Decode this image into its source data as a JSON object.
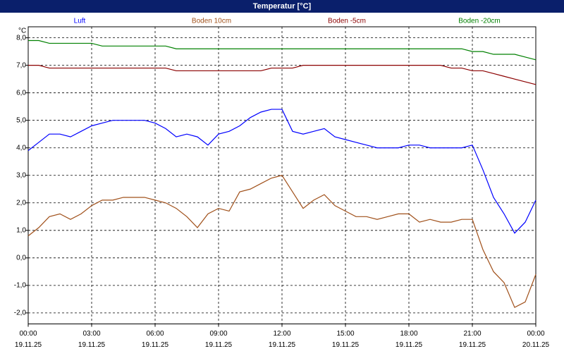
{
  "chart_data": {
    "type": "line",
    "title": "Temperatur [°C]",
    "y_unit": "°C",
    "x": [
      0,
      0.5,
      1,
      1.5,
      2,
      2.5,
      3,
      3.5,
      4,
      4.5,
      5,
      5.5,
      6,
      6.5,
      7,
      7.5,
      8,
      8.5,
      9,
      9.5,
      10,
      10.5,
      11,
      11.5,
      12,
      12.5,
      13,
      13.5,
      14,
      14.5,
      15,
      15.5,
      16,
      16.5,
      17,
      17.5,
      18,
      18.5,
      19,
      19.5,
      20,
      20.5,
      21,
      21.5,
      22,
      22.5,
      23,
      23.5,
      24
    ],
    "series": [
      {
        "name": "Luft",
        "color": "#0000ff",
        "values": [
          3.9,
          4.2,
          4.5,
          4.5,
          4.4,
          4.6,
          4.8,
          4.9,
          5.0,
          5.0,
          5.0,
          5.0,
          4.9,
          4.7,
          4.4,
          4.5,
          4.4,
          4.1,
          4.5,
          4.6,
          4.8,
          5.1,
          5.3,
          5.4,
          5.4,
          4.6,
          4.5,
          4.6,
          4.7,
          4.4,
          4.3,
          4.2,
          4.1,
          4.0,
          4.0,
          4.0,
          4.1,
          4.1,
          4.0,
          4.0,
          4.0,
          4.0,
          4.1,
          3.2,
          2.2,
          1.6,
          0.9,
          1.3,
          2.1
        ]
      },
      {
        "name": "Boden 10cm",
        "color": "#a0501a",
        "values": [
          0.8,
          1.1,
          1.5,
          1.6,
          1.4,
          1.6,
          1.9,
          2.1,
          2.1,
          2.2,
          2.2,
          2.2,
          2.1,
          2.0,
          1.8,
          1.5,
          1.1,
          1.6,
          1.8,
          1.7,
          2.4,
          2.5,
          2.7,
          2.9,
          3.0,
          2.4,
          1.8,
          2.1,
          2.3,
          1.9,
          1.7,
          1.5,
          1.5,
          1.4,
          1.5,
          1.6,
          1.6,
          1.3,
          1.4,
          1.3,
          1.3,
          1.4,
          1.4,
          0.3,
          -0.5,
          -0.9,
          -1.8,
          -1.6,
          -0.6
        ]
      },
      {
        "name": "Boden -5cm",
        "color": "#8b0000",
        "values": [
          7.0,
          7.0,
          6.9,
          6.9,
          6.9,
          6.9,
          6.9,
          6.9,
          6.9,
          6.9,
          6.9,
          6.9,
          6.9,
          6.9,
          6.8,
          6.8,
          6.8,
          6.8,
          6.8,
          6.8,
          6.8,
          6.8,
          6.8,
          6.9,
          6.9,
          6.9,
          7.0,
          7.0,
          7.0,
          7.0,
          7.0,
          7.0,
          7.0,
          7.0,
          7.0,
          7.0,
          7.0,
          7.0,
          7.0,
          7.0,
          6.9,
          6.9,
          6.8,
          6.8,
          6.7,
          6.6,
          6.5,
          6.4,
          6.3
        ]
      },
      {
        "name": "Boden -20cm",
        "color": "#008000",
        "values": [
          7.9,
          7.9,
          7.8,
          7.8,
          7.8,
          7.8,
          7.8,
          7.7,
          7.7,
          7.7,
          7.7,
          7.7,
          7.7,
          7.7,
          7.6,
          7.6,
          7.6,
          7.6,
          7.6,
          7.6,
          7.6,
          7.6,
          7.6,
          7.6,
          7.6,
          7.6,
          7.6,
          7.6,
          7.6,
          7.6,
          7.6,
          7.6,
          7.6,
          7.6,
          7.6,
          7.6,
          7.6,
          7.6,
          7.6,
          7.6,
          7.6,
          7.6,
          7.5,
          7.5,
          7.4,
          7.4,
          7.4,
          7.3,
          7.2
        ]
      }
    ],
    "xlim": [
      0,
      24
    ],
    "xticks": [
      {
        "value": 0,
        "label": "00:00"
      },
      {
        "value": 3,
        "label": "03:00"
      },
      {
        "value": 6,
        "label": "06:00"
      },
      {
        "value": 9,
        "label": "09:00"
      },
      {
        "value": 12,
        "label": "12:00"
      },
      {
        "value": 15,
        "label": "15:00"
      },
      {
        "value": 18,
        "label": "18:00"
      },
      {
        "value": 21,
        "label": "21:00"
      },
      {
        "value": 24,
        "label": "00:00"
      }
    ],
    "xtick_dates": [
      "19.11.25",
      "19.11.25",
      "19.11.25",
      "19.11.25",
      "19.11.25",
      "19.11.25",
      "19.11.25",
      "19.11.25",
      "20.11.25"
    ],
    "ylim": [
      -2.4,
      8.4
    ],
    "yticks": [
      {
        "value": 8,
        "label": "8,0"
      },
      {
        "value": 7,
        "label": "7,0"
      },
      {
        "value": 6,
        "label": "6,0"
      },
      {
        "value": 5,
        "label": "5,0"
      },
      {
        "value": 4,
        "label": "4,0"
      },
      {
        "value": 3,
        "label": "3,0"
      },
      {
        "value": 2,
        "label": "2,0"
      },
      {
        "value": 1,
        "label": "1,0"
      },
      {
        "value": 0,
        "label": "0,0"
      },
      {
        "value": -1,
        "label": "-1,0"
      },
      {
        "value": -2,
        "label": "-2,0"
      }
    ],
    "grid": true
  }
}
